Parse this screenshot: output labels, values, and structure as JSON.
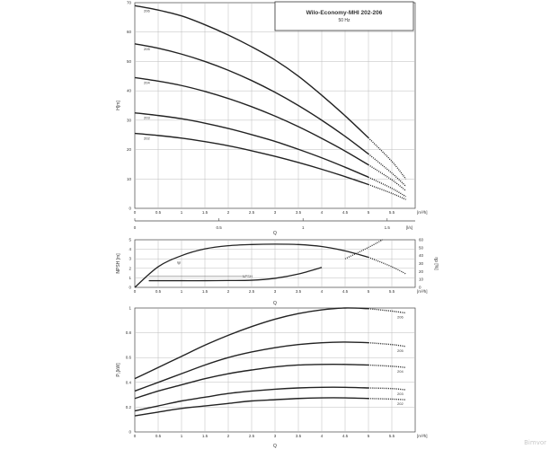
{
  "watermark": "Bimvor",
  "title": "Wilo-Economy-MHI 202-206",
  "subtitle": "50 Hz",
  "chart_data": [
    {
      "type": "line",
      "ylabel": "H[m]",
      "xlabel": "Q",
      "xunit": "[m³/h]",
      "xlim": [
        0,
        6
      ],
      "ylim": [
        0,
        70
      ],
      "xticks": [
        "0",
        "0.5",
        "1",
        "1.5",
        "2",
        "2.5",
        "3",
        "3.5",
        "4",
        "4.5",
        "5",
        "5.5"
      ],
      "yticks": [
        "0",
        "10",
        "20",
        "30",
        "40",
        "50",
        "60",
        "70"
      ],
      "secondary_x": {
        "unit": "[l/s]",
        "ticks": [
          "0",
          "0.5",
          "1",
          "1.5"
        ],
        "xlim": [
          0,
          1.6667
        ]
      },
      "solid_until": 5,
      "series": [
        {
          "name": "206",
          "x": [
            0,
            0.5,
            1,
            1.5,
            2,
            2.5,
            3,
            3.5,
            4,
            4.5,
            5,
            5.5,
            5.8
          ],
          "values": [
            69,
            67.5,
            65.5,
            62.5,
            59,
            55,
            50.5,
            45,
            38.5,
            31.5,
            24,
            16,
            10
          ]
        },
        {
          "name": "205",
          "x": [
            0,
            0.5,
            1,
            1.5,
            2,
            2.5,
            3,
            3.5,
            4,
            4.5,
            5,
            5.5,
            5.8
          ],
          "values": [
            56,
            54.5,
            52.5,
            50,
            47,
            43.5,
            39.5,
            35,
            30,
            24.5,
            18.5,
            12,
            7.5
          ]
        },
        {
          "name": "204",
          "x": [
            0,
            0.5,
            1,
            1.5,
            2,
            2.5,
            3,
            3.5,
            4,
            4.5,
            5,
            5.5,
            5.8
          ],
          "values": [
            44.5,
            43.3,
            41.8,
            39.8,
            37.4,
            34.6,
            31.4,
            27.8,
            23.8,
            19.5,
            14.8,
            9.7,
            6
          ]
        },
        {
          "name": "203",
          "x": [
            0,
            0.5,
            1,
            1.5,
            2,
            2.5,
            3,
            3.5,
            4,
            4.5,
            5,
            5.5,
            5.8
          ],
          "values": [
            32.5,
            31.6,
            30.5,
            29,
            27.2,
            25.1,
            22.8,
            20.1,
            17.2,
            14,
            10.6,
            6.8,
            4
          ]
        },
        {
          "name": "202",
          "x": [
            0,
            0.5,
            1,
            1.5,
            2,
            2.5,
            3,
            3.5,
            4,
            4.5,
            5,
            5.5,
            5.8
          ],
          "values": [
            25.5,
            24.8,
            23.9,
            22.7,
            21.3,
            19.6,
            17.7,
            15.6,
            13.3,
            10.8,
            8.1,
            5.1,
            3
          ]
        }
      ]
    },
    {
      "type": "line",
      "ylabel": "NPSH [m]",
      "y2label": "ηp [%]",
      "xlabel": "Q",
      "xunit": "[m³/h]",
      "xlim": [
        0,
        6
      ],
      "ylim": [
        0,
        5
      ],
      "y2lim": [
        0,
        60
      ],
      "xticks": [
        "0",
        "0.5",
        "1",
        "1.5",
        "2",
        "2.5",
        "3",
        "3.5",
        "4",
        "4.5",
        "5",
        "5.5"
      ],
      "yticks": [
        "0",
        "1",
        "2",
        "3",
        "4",
        "5"
      ],
      "y2ticks": [
        "0",
        "10",
        "20",
        "30",
        "40",
        "50",
        "60"
      ],
      "series": [
        {
          "name": "ηp",
          "axis": "right",
          "x": [
            0,
            0.5,
            1,
            1.5,
            2,
            2.5,
            3,
            3.5,
            4,
            4.5,
            5,
            5.5,
            5.8
          ],
          "values": [
            0,
            26,
            40,
            48.5,
            52.5,
            54,
            54.5,
            54,
            51.5,
            46,
            38,
            26,
            17
          ]
        },
        {
          "name": "NPSH",
          "axis": "left",
          "x": [
            0.3,
            0.5,
            1,
            1.5,
            2,
            2.5,
            3,
            3.5,
            4,
            4.5,
            5,
            5.3
          ],
          "values": [
            0.7,
            0.7,
            0.7,
            0.7,
            0.72,
            0.75,
            0.95,
            1.4,
            2.1,
            3,
            4.2,
            5
          ]
        }
      ]
    },
    {
      "type": "line",
      "ylabel": "P₂[kW]",
      "xlabel": "Q",
      "xunit": "[m³/h]",
      "xlim": [
        0,
        6
      ],
      "ylim": [
        0,
        1
      ],
      "xticks": [
        "0",
        "0.5",
        "1",
        "1.5",
        "2",
        "2.5",
        "3",
        "3.5",
        "4",
        "4.5",
        "5",
        "5.5"
      ],
      "yticks": [
        "0",
        "0.2",
        "0.4",
        "0.6",
        "0.8",
        "1"
      ],
      "solid_until": 5,
      "series": [
        {
          "name": "206",
          "x": [
            0,
            0.5,
            1,
            1.5,
            2,
            2.5,
            3,
            3.5,
            4,
            4.5,
            5,
            5.5,
            5.8
          ],
          "values": [
            0.43,
            0.52,
            0.61,
            0.7,
            0.78,
            0.85,
            0.91,
            0.955,
            0.985,
            1,
            0.995,
            0.975,
            0.96
          ]
        },
        {
          "name": "205",
          "x": [
            0,
            0.5,
            1,
            1.5,
            2,
            2.5,
            3,
            3.5,
            4,
            4.5,
            5,
            5.5,
            5.8
          ],
          "values": [
            0.33,
            0.4,
            0.47,
            0.54,
            0.6,
            0.645,
            0.68,
            0.705,
            0.72,
            0.725,
            0.72,
            0.705,
            0.69
          ]
        },
        {
          "name": "204",
          "x": [
            0,
            0.5,
            1,
            1.5,
            2,
            2.5,
            3,
            3.5,
            4,
            4.5,
            5,
            5.5,
            5.8
          ],
          "values": [
            0.27,
            0.33,
            0.38,
            0.43,
            0.47,
            0.5,
            0.525,
            0.54,
            0.545,
            0.545,
            0.54,
            0.53,
            0.52
          ]
        },
        {
          "name": "203",
          "x": [
            0,
            0.5,
            1,
            1.5,
            2,
            2.5,
            3,
            3.5,
            4,
            4.5,
            5,
            5.5,
            5.8
          ],
          "values": [
            0.17,
            0.21,
            0.25,
            0.28,
            0.31,
            0.33,
            0.345,
            0.355,
            0.36,
            0.36,
            0.355,
            0.35,
            0.34
          ]
        },
        {
          "name": "202",
          "x": [
            0,
            0.5,
            1,
            1.5,
            2,
            2.5,
            3,
            3.5,
            4,
            4.5,
            5,
            5.5,
            5.8
          ],
          "values": [
            0.13,
            0.16,
            0.19,
            0.21,
            0.23,
            0.25,
            0.26,
            0.27,
            0.275,
            0.275,
            0.27,
            0.265,
            0.26
          ]
        }
      ]
    }
  ]
}
